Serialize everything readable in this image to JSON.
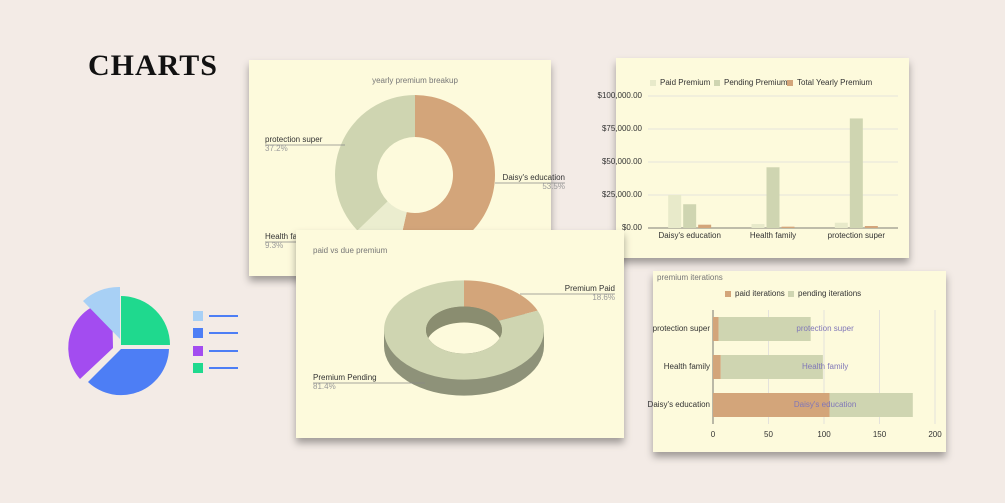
{
  "heading": "CHARTS",
  "chart_data": [
    {
      "type": "donut",
      "title": "yearly premium breakup",
      "categories": [
        "Daisy's education",
        "Health family",
        "protection super"
      ],
      "values": [
        53.5,
        9.3,
        37.2
      ],
      "value_labels": [
        "53.5%",
        "9.3%",
        "37.2%"
      ],
      "colors": [
        "#d3a57a",
        "#ebedcf",
        "#cfd5b1"
      ]
    },
    {
      "type": "bar",
      "categories": [
        "Daisy's education",
        "Health family",
        "protection super"
      ],
      "series": [
        {
          "name": "Paid Premium",
          "color": "#e8eaca",
          "values": [
            25000,
            3000,
            4000
          ]
        },
        {
          "name": "Pending Premium",
          "color": "#cfd5b1",
          "values": [
            18000,
            46000,
            83000
          ]
        },
        {
          "name": "Total Yearly Premium",
          "color": "#d3a57a",
          "values": [
            2500,
            1000,
            1500
          ]
        }
      ],
      "ylim": [
        0,
        100000
      ],
      "yticks": [
        {
          "value": 0,
          "label": "$0.00"
        },
        {
          "value": 25000,
          "label": "$25,000.00"
        },
        {
          "value": 50000,
          "label": "$50,000.00"
        },
        {
          "value": 75000,
          "label": "$75,000.00"
        },
        {
          "value": 100000,
          "label": "$100,000.00"
        }
      ],
      "grid": true
    },
    {
      "type": "donut3d",
      "title": "paid vs due premium",
      "categories": [
        "Premium Paid",
        "Premium Pending"
      ],
      "values": [
        18.6,
        81.4
      ],
      "value_labels": [
        "18.6%",
        "81.4%"
      ],
      "colors": [
        "#d3a57a",
        "#cfd5b1"
      ]
    },
    {
      "type": "hbar",
      "title": "premium iterations",
      "stacked": true,
      "categories": [
        "protection super",
        "Health family",
        "Daisy's education"
      ],
      "series": [
        {
          "name": "paid iterations",
          "color": "#d3a57a",
          "values": [
            5,
            7,
            105
          ]
        },
        {
          "name": "pending iterations",
          "color": "#cfd5b1",
          "values": [
            83,
            92,
            75
          ]
        }
      ],
      "xlim": [
        0,
        200
      ],
      "xticks": [
        0,
        50,
        100,
        150,
        200
      ],
      "grid": true
    }
  ]
}
